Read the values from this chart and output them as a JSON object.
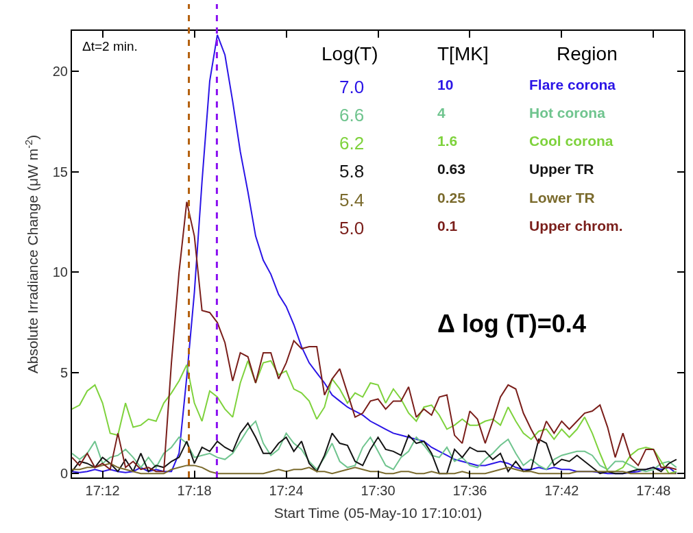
{
  "chart_data": {
    "type": "line",
    "xlabel": "Start Time (05-May-10 17:10:01)",
    "ylabel": "Absolute Irradiance Change (μW m$^{-2}$)",
    "legend_title": "Log(T)",
    "legend": "top right",
    "line_style": "solid",
    "xlim": [
      17.1667,
      17.8333
    ],
    "xticks": [
      {
        "value": 17.2,
        "label": "17:12"
      },
      {
        "value": 17.3,
        "label": "17:18"
      },
      {
        "value": 17.4,
        "label": "17:24"
      },
      {
        "value": 17.5,
        "label": "17:30"
      },
      {
        "value": 17.6,
        "label": "17:36"
      },
      {
        "value": 17.7,
        "label": "17:42"
      },
      {
        "value": 17.8,
        "label": "17:48"
      }
    ],
    "ylim": [
      -0.2,
      22
    ],
    "yticks": [
      0,
      5,
      10,
      15,
      20
    ],
    "x": [
      17.1667,
      17.175,
      17.1833,
      17.1917,
      17.2,
      17.2083,
      17.2167,
      17.225,
      17.2333,
      17.2417,
      17.25,
      17.2583,
      17.2667,
      17.275,
      17.2833,
      17.2917,
      17.3,
      17.3083,
      17.3167,
      17.325,
      17.3333,
      17.3417,
      17.35,
      17.3583,
      17.3667,
      17.375,
      17.3833,
      17.3917,
      17.4,
      17.4083,
      17.4167,
      17.425,
      17.4333,
      17.4417,
      17.45,
      17.4583,
      17.4667,
      17.475,
      17.4833,
      17.4917,
      17.5,
      17.5083,
      17.5167,
      17.525,
      17.5333,
      17.5417,
      17.55,
      17.5583,
      17.5667,
      17.575,
      17.5833,
      17.5917,
      17.6,
      17.6083,
      17.6167,
      17.625,
      17.6333,
      17.6417,
      17.65,
      17.6583,
      17.6667,
      17.675,
      17.6833,
      17.6917,
      17.7,
      17.7083,
      17.7167,
      17.725,
      17.7333,
      17.7417,
      17.75,
      17.7583,
      17.7667,
      17.775,
      17.7833,
      17.7917,
      17.8,
      17.8083,
      17.8167,
      17.825
    ],
    "series": [
      {
        "name": "7.0",
        "color": "#2a14e6",
        "values": [
          0.1,
          0.05,
          0.1,
          0.2,
          0.1,
          0.2,
          0.1,
          0.05,
          0.1,
          0.3,
          0.1,
          0.2,
          0.1,
          0.1,
          1.0,
          4.8,
          9.0,
          14.5,
          19.5,
          21.8,
          20.8,
          18.5,
          16.0,
          14.0,
          11.8,
          10.6,
          9.9,
          8.9,
          8.3,
          7.4,
          6.3,
          5.5,
          5.0,
          4.5,
          3.9,
          3.6,
          3.3,
          3.1,
          2.9,
          2.6,
          2.4,
          2.2,
          2.0,
          1.9,
          1.8,
          1.7,
          1.6,
          1.3,
          1.1,
          0.9,
          0.7,
          0.6,
          0.5,
          0.4,
          0.4,
          0.5,
          0.6,
          0.5,
          0.3,
          0.2,
          0.2,
          0.3,
          0.2,
          0.3,
          0.2,
          0.2,
          0.1,
          0.1,
          0.1,
          0.05,
          0.0,
          0.0,
          0.0,
          0.05,
          0.1,
          0.2,
          0.3,
          0.2,
          0.3,
          0.0
        ]
      },
      {
        "name": "6.6",
        "color": "#6fc48e",
        "values": [
          1.0,
          0.7,
          1.0,
          1.6,
          0.5,
          0.8,
          0.9,
          1.2,
          0.8,
          0.3,
          0.8,
          0.3,
          1.0,
          1.3,
          1.8,
          1.5,
          0.8,
          0.9,
          1.0,
          0.8,
          0.7,
          1.0,
          1.6,
          2.2,
          2.6,
          1.5,
          0.9,
          1.2,
          2.0,
          1.5,
          1.2,
          0.6,
          0.2,
          0.8,
          1.5,
          0.6,
          0.3,
          0.4,
          1.3,
          1.8,
          1.1,
          0.4,
          0.2,
          0.8,
          1.1,
          1.8,
          1.4,
          0.9,
          0.8,
          1.3,
          0.6,
          0.8,
          0.4,
          0.3,
          0.7,
          1.0,
          1.4,
          1.7,
          1.0,
          0.4,
          0.7,
          0.4,
          0.2,
          0.7,
          0.9,
          1.0,
          1.1,
          1.1,
          0.9,
          0.4,
          0.2,
          0.6,
          0.6,
          0.4,
          0.2,
          0.1,
          0.2,
          0.5,
          0.6,
          0.3
        ]
      },
      {
        "name": "6.2",
        "color": "#7ed23c",
        "values": [
          3.2,
          3.4,
          4.1,
          4.4,
          3.5,
          2.0,
          1.9,
          3.5,
          2.3,
          2.4,
          2.7,
          2.6,
          3.5,
          4.0,
          4.6,
          5.4,
          3.5,
          2.6,
          4.1,
          3.8,
          3.2,
          2.8,
          4.5,
          5.6,
          4.5,
          5.5,
          5.6,
          4.9,
          5.1,
          4.2,
          4.0,
          3.6,
          2.7,
          3.3,
          4.7,
          4.2,
          3.5,
          4.0,
          3.8,
          4.5,
          4.4,
          3.5,
          4.2,
          3.7,
          3.0,
          2.6,
          3.3,
          3.4,
          2.9,
          2.2,
          2.4,
          2.7,
          2.4,
          2.4,
          2.6,
          2.7,
          2.4,
          3.3,
          2.6,
          2.0,
          1.7,
          2.1,
          2.2,
          1.7,
          2.2,
          1.8,
          2.2,
          2.8,
          2.0,
          1.0,
          0.1,
          0.1,
          0.3,
          0.9,
          1.2,
          1.3,
          1.2,
          0.6,
          0.0,
          0.1
        ]
      },
      {
        "name": "5.8",
        "color": "#141414",
        "values": [
          0.1,
          0.6,
          0.5,
          0.3,
          0.8,
          0.5,
          0.1,
          0.7,
          0.1,
          1.0,
          0.1,
          0.4,
          0.3,
          0.6,
          0.8,
          1.6,
          0.5,
          1.3,
          1.1,
          1.6,
          1.3,
          1.1,
          2.0,
          2.5,
          1.8,
          1.0,
          1.0,
          1.5,
          1.8,
          1.1,
          1.6,
          0.5,
          0.1,
          0.9,
          2.0,
          1.5,
          1.4,
          0.6,
          0.4,
          1.2,
          1.8,
          1.2,
          1.1,
          0.9,
          1.9,
          1.5,
          1.6,
          1.0,
          0.0,
          0.0,
          1.2,
          0.8,
          1.3,
          1.1,
          1.1,
          0.7,
          1.0,
          0.1,
          0.6,
          0.1,
          0.2,
          1.7,
          1.5,
          0.4,
          0.7,
          0.6,
          0.9,
          0.6,
          0.3,
          0.0,
          0.1,
          0.0,
          0.0,
          0.1,
          0.2,
          0.2,
          0.3,
          0.1,
          0.5,
          0.7
        ]
      },
      {
        "name": "5.4",
        "color": "#7a6a2c",
        "values": [
          0.2,
          0.2,
          0.3,
          0.3,
          0.4,
          0.5,
          0.3,
          0.2,
          0.1,
          0.0,
          0.0,
          0.0,
          0.0,
          0.2,
          0.3,
          0.4,
          0.4,
          0.3,
          0.1,
          0.0,
          0.0,
          0.0,
          0.0,
          0.0,
          0.0,
          0.0,
          0.1,
          0.2,
          0.1,
          0.2,
          0.2,
          0.3,
          0.1,
          0.1,
          0.0,
          0.1,
          0.2,
          0.3,
          0.2,
          0.1,
          0.1,
          0.0,
          0.0,
          0.1,
          0.1,
          0.0,
          0.0,
          0.1,
          0.0,
          0.0,
          0.0,
          0.1,
          0.0,
          0.0,
          0.0,
          0.1,
          0.2,
          0.3,
          0.2,
          0.1,
          0.1,
          0.0,
          0.0,
          0.0,
          0.0,
          0.0,
          0.1,
          0.1,
          0.1,
          0.1,
          0.1,
          0.1,
          0.1,
          0.0,
          0.0,
          0.0,
          0.0,
          0.0,
          0.0,
          0.0
        ]
      },
      {
        "name": "5.0",
        "color": "#7a1e1a",
        "values": [
          0.8,
          0.4,
          1.0,
          0.3,
          0.5,
          0.2,
          2.0,
          0.3,
          0.6,
          0.2,
          0.3,
          0.1,
          0.1,
          5.5,
          10.0,
          13.5,
          11.8,
          8.1,
          8.0,
          7.5,
          6.5,
          4.6,
          6.0,
          5.8,
          4.5,
          6.0,
          6.0,
          4.7,
          5.5,
          6.6,
          6.2,
          6.3,
          6.3,
          3.9,
          4.7,
          5.2,
          4.0,
          2.8,
          3.0,
          3.6,
          3.7,
          3.2,
          3.6,
          3.6,
          4.3,
          2.8,
          3.2,
          2.9,
          3.8,
          3.9,
          1.9,
          1.5,
          3.1,
          2.7,
          1.5,
          2.6,
          3.8,
          4.4,
          4.2,
          3.0,
          2.2,
          1.5,
          2.6,
          2.0,
          2.6,
          2.2,
          2.6,
          3.0,
          3.1,
          3.4,
          2.3,
          0.8,
          2.0,
          0.8,
          0.4,
          1.2,
          1.2,
          0.3,
          0.3,
          0.2
        ]
      }
    ],
    "ref_lines": [
      {
        "axis": "x",
        "value": 17.294,
        "color": "#b4600e",
        "line_style": "dashed"
      },
      {
        "axis": "x",
        "value": 17.3245,
        "color": "#8a10f0",
        "line_style": "dashed"
      }
    ],
    "annotations": [
      "Δt=2 min.",
      "T[MK]",
      "Region",
      "10",
      "Flare corona",
      "4",
      "Hot corona",
      "1.6",
      "Cool corona",
      "0.63",
      "Upper TR",
      "0.25",
      "Lower TR",
      "0.1",
      "Upper chrom.",
      "Δ log (T)=0.4"
    ]
  }
}
